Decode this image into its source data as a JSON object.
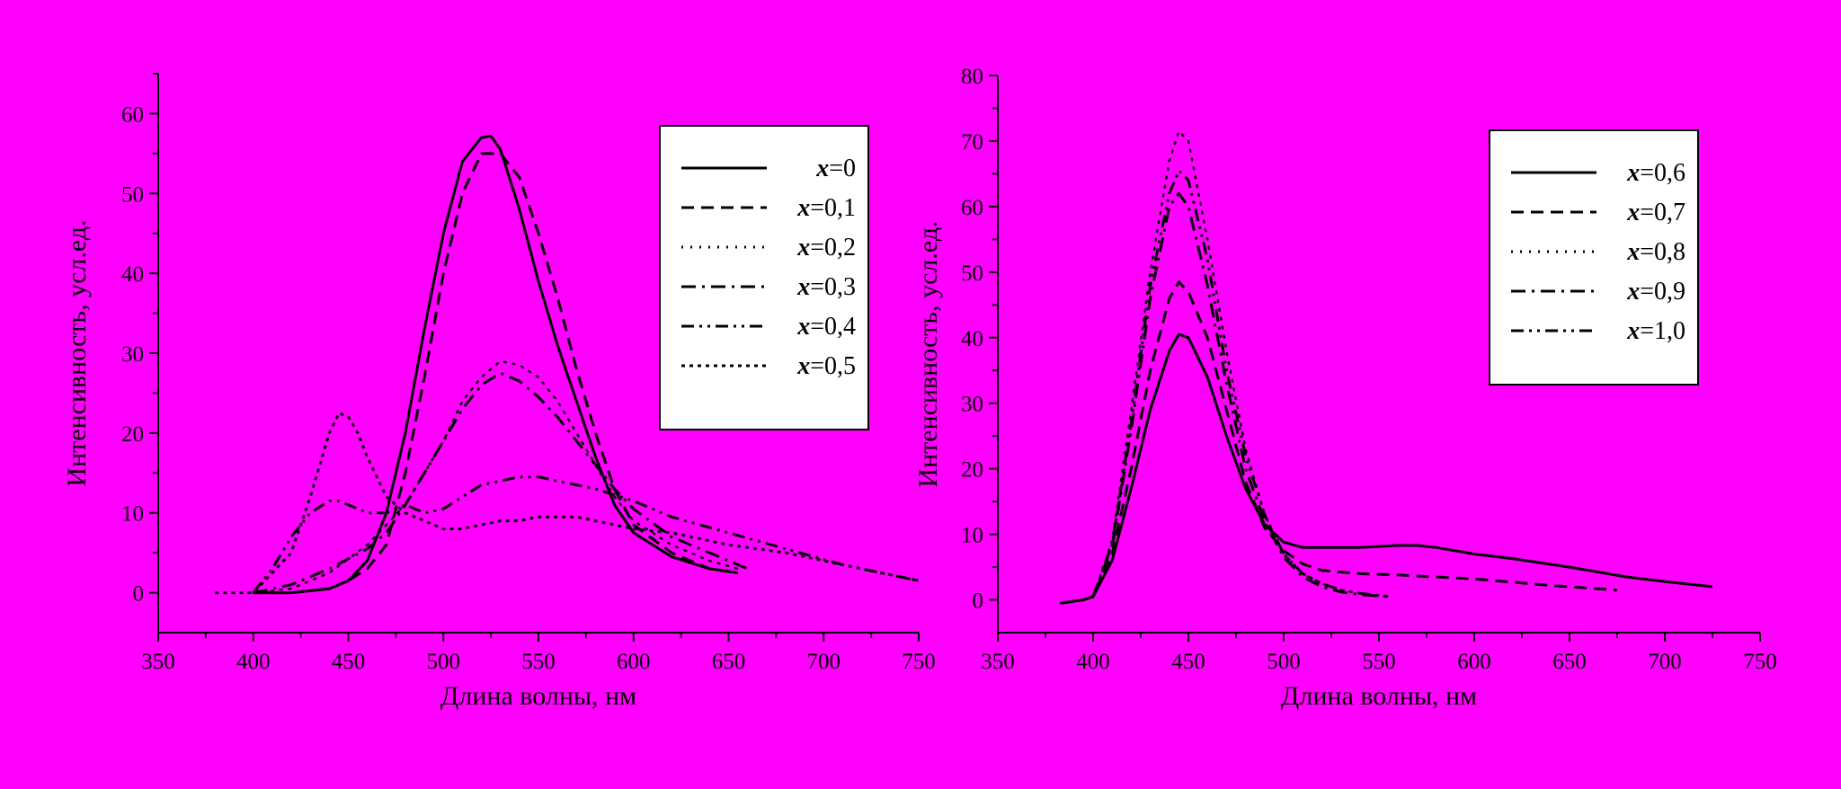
{
  "page": {
    "background": "#ff00ff"
  },
  "chart_data": [
    {
      "type": "line",
      "xlabel": "Длина волны, нм",
      "ylabel": "Интенсивность, усл.ед.",
      "xlim": [
        350,
        750
      ],
      "ylim": [
        -5,
        65
      ],
      "xticks": [
        350,
        400,
        450,
        500,
        550,
        600,
        650,
        700,
        750
      ],
      "yticks": [
        0,
        10,
        20,
        30,
        40,
        50,
        60
      ],
      "legend_position": "top-right",
      "series": [
        {
          "name": "0",
          "prefix": "x",
          "style": "solid",
          "x": [
            400,
            420,
            440,
            450,
            460,
            470,
            480,
            490,
            500,
            510,
            520,
            525,
            530,
            540,
            550,
            560,
            570,
            580,
            590,
            600,
            620,
            640,
            655
          ],
          "y": [
            0,
            0,
            0.5,
            1.5,
            4,
            10,
            20,
            33,
            45,
            54,
            57,
            57.2,
            55.5,
            48,
            39,
            31,
            24,
            17,
            11,
            7.5,
            4.5,
            3,
            2.5
          ]
        },
        {
          "name": "0,1",
          "prefix": "x",
          "style": "dashed",
          "x": [
            400,
            420,
            440,
            450,
            460,
            470,
            480,
            490,
            500,
            510,
            520,
            530,
            540,
            550,
            560,
            570,
            580,
            590,
            600,
            620,
            640,
            655
          ],
          "y": [
            0,
            0,
            0.5,
            1.5,
            3,
            6,
            15,
            27,
            40,
            50,
            55,
            55,
            52,
            45,
            37,
            28,
            20,
            13,
            8.5,
            5,
            3,
            2.5
          ]
        },
        {
          "name": "0,2",
          "prefix": "x",
          "style": "dotted",
          "x": [
            400,
            420,
            440,
            460,
            480,
            490,
            500,
            510,
            520,
            530,
            540,
            550,
            560,
            570,
            580,
            590,
            600,
            620,
            640,
            655
          ],
          "y": [
            0,
            0.5,
            2.5,
            6,
            11,
            15,
            19,
            24,
            27,
            29,
            28.5,
            27,
            24,
            20,
            16,
            12,
            9,
            6,
            4,
            3
          ]
        },
        {
          "name": "0,3",
          "prefix": "x",
          "style": "dashdot",
          "x": [
            400,
            420,
            440,
            460,
            470,
            480,
            490,
            500,
            510,
            520,
            530,
            540,
            550,
            560,
            570,
            580,
            590,
            600,
            620,
            640,
            660
          ],
          "y": [
            0,
            1,
            3,
            5.5,
            7.5,
            11,
            15,
            19,
            23,
            26,
            27.5,
            26.5,
            24.5,
            22,
            19,
            16,
            13,
            10.5,
            7,
            5,
            3
          ]
        },
        {
          "name": "0,4",
          "prefix": "x",
          "style": "dashdotdot",
          "x": [
            400,
            410,
            420,
            430,
            440,
            445,
            450,
            460,
            470,
            480,
            490,
            500,
            510,
            520,
            530,
            540,
            550,
            560,
            580,
            600,
            620,
            650,
            680,
            710,
            730,
            750
          ],
          "y": [
            0,
            3,
            7,
            10,
            11.5,
            11.5,
            11,
            10,
            10,
            11,
            10,
            10.5,
            12,
            13.5,
            14,
            14.5,
            14.5,
            14,
            13,
            11.5,
            9.5,
            7.5,
            5.5,
            3.5,
            2.5,
            1.5
          ]
        },
        {
          "name": "0,5",
          "prefix": "x",
          "style": "shortdot",
          "x": [
            380,
            400,
            420,
            430,
            440,
            445,
            450,
            455,
            460,
            470,
            480,
            490,
            500,
            510,
            520,
            530,
            540,
            550,
            560,
            570,
            580,
            600,
            620,
            650,
            680,
            710,
            740,
            750
          ],
          "y": [
            0,
            0,
            5,
            12,
            20,
            22.5,
            22,
            20,
            17,
            12,
            10,
            9,
            8,
            8,
            8.5,
            9,
            9,
            9.5,
            9.5,
            9.5,
            9,
            8,
            7.5,
            6,
            5,
            3.5,
            2,
            1.5
          ]
        }
      ]
    },
    {
      "type": "line",
      "xlabel": "Длина волны, нм",
      "ylabel": "Интенсивность, усл.ед.",
      "xlim": [
        350,
        750
      ],
      "ylim": [
        -5,
        80
      ],
      "xticks": [
        350,
        400,
        450,
        500,
        550,
        600,
        650,
        700,
        750
      ],
      "yticks": [
        0,
        10,
        20,
        30,
        40,
        50,
        60,
        70,
        80
      ],
      "legend_position": "top-right",
      "series": [
        {
          "name": "0,6",
          "prefix": "x",
          "style": "solid",
          "x": [
            383,
            395,
            400,
            410,
            420,
            430,
            440,
            445,
            450,
            460,
            470,
            480,
            490,
            500,
            510,
            520,
            540,
            560,
            570,
            580,
            600,
            620,
            650,
            680,
            700,
            725
          ],
          "y": [
            -0.5,
            0,
            0.5,
            6,
            17,
            29,
            38,
            40.5,
            40,
            34,
            25,
            17,
            11.5,
            8.8,
            8,
            8,
            8,
            8.3,
            8.3,
            8,
            7,
            6.3,
            5,
            3.5,
            2.8,
            2
          ]
        },
        {
          "name": "0,7",
          "prefix": "x",
          "style": "dashed",
          "x": [
            383,
            395,
            400,
            410,
            420,
            430,
            440,
            445,
            450,
            460,
            470,
            480,
            490,
            500,
            510,
            520,
            540,
            560,
            600,
            640,
            675
          ],
          "y": [
            -0.5,
            0,
            0.5,
            7,
            20,
            35,
            46,
            48.5,
            47,
            40,
            29,
            18,
            11,
            7.5,
            5.5,
            4.5,
            4,
            3.8,
            3.2,
            2.2,
            1.5
          ]
        },
        {
          "name": "0,8",
          "prefix": "x",
          "style": "dotted",
          "x": [
            383,
            395,
            400,
            410,
            420,
            430,
            440,
            445,
            450,
            460,
            470,
            480,
            490,
            500,
            510,
            520,
            530,
            540,
            555
          ],
          "y": [
            -0.5,
            0,
            0.5,
            9,
            29,
            50,
            67,
            71.5,
            70,
            55,
            38,
            23,
            13,
            7,
            4,
            2.5,
            1.5,
            1,
            0.5
          ]
        },
        {
          "name": "0,9",
          "prefix": "x",
          "style": "dashdot",
          "x": [
            383,
            395,
            400,
            410,
            420,
            430,
            440,
            445,
            450,
            460,
            470,
            480,
            490,
            500,
            510,
            520,
            530,
            540,
            555
          ],
          "y": [
            -0.5,
            0,
            0.5,
            8,
            26,
            46,
            60,
            62,
            60,
            48,
            33,
            20,
            12,
            6.5,
            3.5,
            2,
            1.2,
            0.8,
            0.5
          ]
        },
        {
          "name": "1,0",
          "prefix": "x",
          "style": "dashdotdot",
          "x": [
            383,
            395,
            400,
            410,
            420,
            430,
            440,
            445,
            450,
            460,
            470,
            480,
            490,
            500,
            510,
            520,
            530,
            540,
            555
          ],
          "y": [
            -0.5,
            0,
            0.5,
            8.5,
            27,
            48,
            62,
            65.5,
            64,
            52,
            35,
            22,
            13,
            7,
            4,
            2.5,
            1.5,
            1,
            0.5
          ]
        }
      ]
    }
  ]
}
